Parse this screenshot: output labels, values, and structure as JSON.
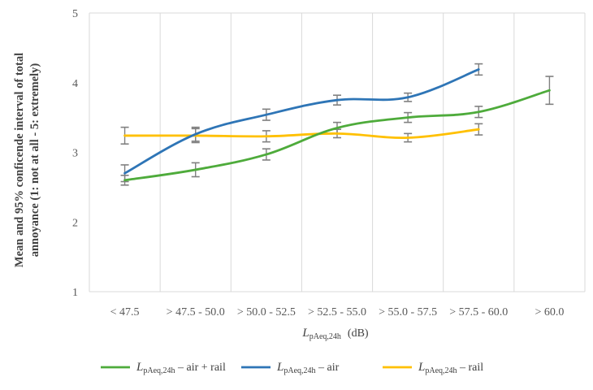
{
  "chart_data": {
    "type": "line",
    "categories": [
      "< 47.5",
      "> 47.5 - 50.0",
      "> 50.0 - 52.5",
      "> 52.5 - 55.0",
      "> 55.0 - 57.5",
      "> 57.5 - 60.0",
      "> 60.0"
    ],
    "ylim": [
      1,
      5
    ],
    "yticks": [
      1,
      2,
      3,
      4,
      5
    ],
    "ylabel_line1": "Mean and 95% conficende interval of total",
    "ylabel_line2": "annoyance (1: not at all - 5: extremely)",
    "xlabel_main": "L",
    "xlabel_sub": "pAeq,24h",
    "xlabel_unit": "(dB)",
    "grid": "vertical",
    "legend_position": "bottom",
    "series": [
      {
        "name": "air + rail",
        "legend_main": "L",
        "legend_sub": "pAeq,24h",
        "legend_suffix": " – air + rail",
        "color": "#4eab3b",
        "values": [
          2.6,
          2.75,
          2.97,
          3.35,
          3.5,
          3.58,
          3.89
        ],
        "errors": [
          0.07,
          0.1,
          0.08,
          0.08,
          0.07,
          0.08,
          0.2
        ]
      },
      {
        "name": "air",
        "legend_main": "L",
        "legend_sub": "pAeq,24h",
        "legend_suffix": " – air",
        "color": "#2e75b6",
        "values": [
          2.7,
          3.26,
          3.54,
          3.75,
          3.79,
          4.19,
          null
        ],
        "errors": [
          0.12,
          0.1,
          0.08,
          0.07,
          0.06,
          0.08,
          null
        ]
      },
      {
        "name": "rail",
        "legend_main": "L",
        "legend_sub": "pAeq,24h",
        "legend_suffix": " – rail",
        "color": "#ffc000",
        "values": [
          3.24,
          3.24,
          3.23,
          3.27,
          3.21,
          3.33,
          null
        ],
        "errors": [
          0.12,
          0.1,
          0.08,
          0.06,
          0.06,
          0.08,
          null
        ]
      }
    ]
  }
}
